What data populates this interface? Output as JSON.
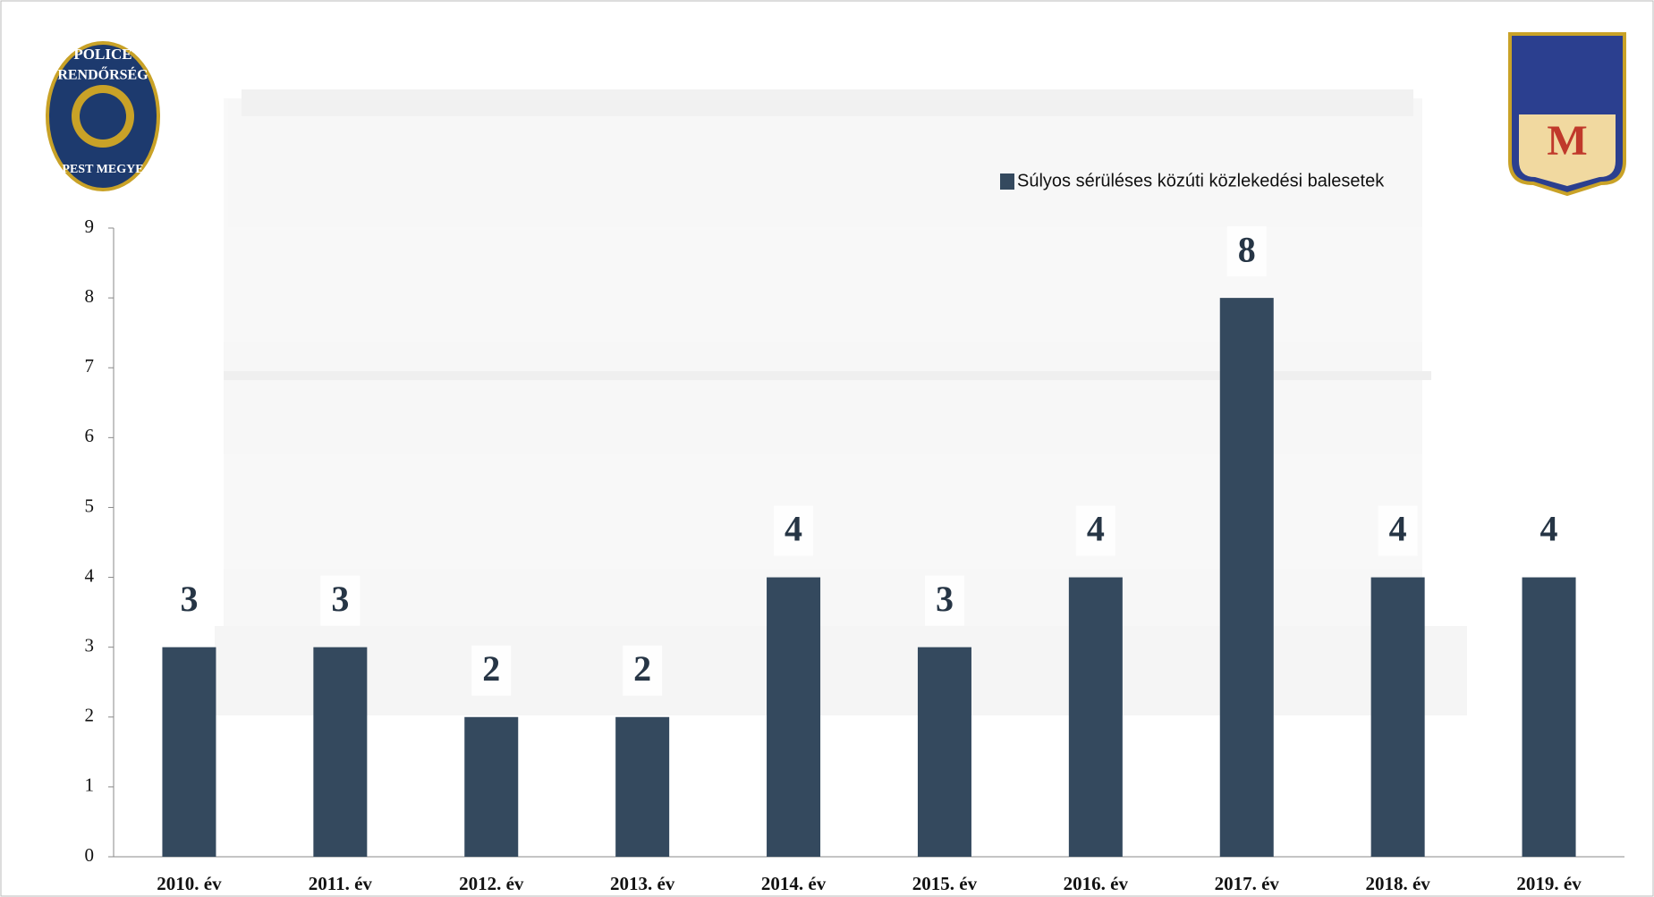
{
  "chart_data": {
    "type": "bar",
    "categories": [
      "2010. év",
      "2011. év",
      "2012. év",
      "2013. év",
      "2014. év",
      "2015. év",
      "2016. év",
      "2017. év",
      "2018. év",
      "2019. év"
    ],
    "series": [
      {
        "name": "Súlyos sérüléses közúti közlekedési balesetek",
        "color": "#34495e",
        "values": [
          3,
          3,
          2,
          2,
          4,
          3,
          4,
          8,
          4,
          4
        ]
      }
    ],
    "ylim": [
      0,
      9
    ],
    "yticks": [
      0,
      1,
      2,
      3,
      4,
      5,
      6,
      7,
      8,
      9
    ],
    "grid": false,
    "legend": "top-right"
  },
  "badges": {
    "police": [
      "POLICE",
      "RENDŐRSÉG",
      "PEST MEGYE"
    ],
    "town": "M"
  }
}
